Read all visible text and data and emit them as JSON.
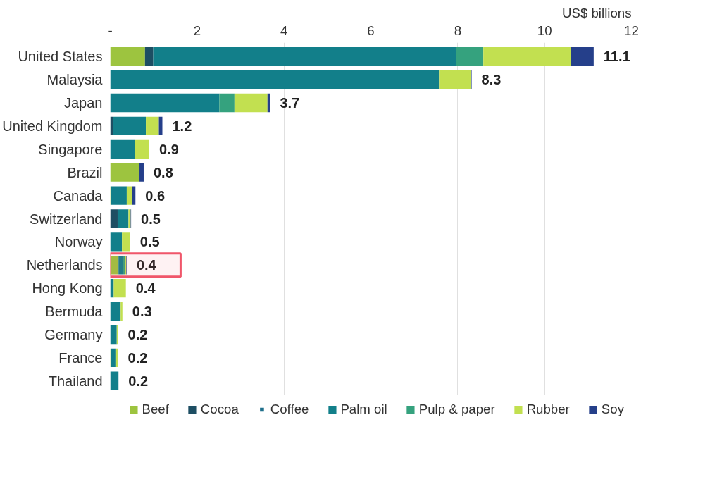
{
  "chart_data": {
    "type": "bar",
    "orientation": "horizontal",
    "stacked": true,
    "xlabel": "US$ billions",
    "categories": [
      "United States",
      "Malaysia",
      "Japan",
      "United Kingdom",
      "Singapore",
      "Brazil",
      "Canada",
      "Switzerland",
      "Norway",
      "Netherlands",
      "Hong Kong",
      "Bermuda",
      "Germany",
      "France",
      "Thailand"
    ],
    "series": [
      {
        "name": "Beef",
        "color": "#9dc43f",
        "values": [
          0.8,
          null,
          null,
          null,
          null,
          0.66,
          0.02,
          null,
          null,
          0.19,
          null,
          null,
          null,
          0.02,
          null
        ]
      },
      {
        "name": "Cocoa",
        "color": "#1d4e63",
        "values": [
          0.19,
          null,
          null,
          0.06,
          null,
          null,
          null,
          0.17,
          null,
          null,
          null,
          null,
          null,
          null,
          null
        ]
      },
      {
        "name": "Coffee",
        "color": "#1f6f8b",
        "values": [
          null,
          null,
          null,
          null,
          null,
          null,
          null,
          null,
          null,
          null,
          null,
          null,
          null,
          null,
          null
        ]
      },
      {
        "name": "Palm oil",
        "color": "#127f8a",
        "values": [
          6.97,
          7.57,
          2.51,
          0.76,
          0.57,
          null,
          0.36,
          0.25,
          0.27,
          0.11,
          0.08,
          0.24,
          0.15,
          0.1,
          0.19
        ]
      },
      {
        "name": "Pulp & paper",
        "color": "#35a27e",
        "values": [
          0.63,
          null,
          0.35,
          null,
          null,
          null,
          null,
          null,
          null,
          0.04,
          null,
          null,
          null,
          null,
          null
        ]
      },
      {
        "name": "Rubber",
        "color": "#c2e050",
        "values": [
          2.02,
          0.73,
          0.76,
          0.3,
          0.32,
          null,
          0.12,
          0.05,
          0.19,
          0.03,
          0.28,
          0.04,
          0.03,
          0.05,
          null
        ]
      },
      {
        "name": "Soy",
        "color": "#253f8a",
        "values": [
          0.52,
          0.02,
          0.06,
          0.08,
          0.01,
          0.11,
          0.08,
          0.01,
          null,
          0.01,
          null,
          null,
          null,
          0.01,
          null
        ]
      }
    ],
    "totals": [
      "11.1",
      "8.3",
      "3.7",
      "1.2",
      "0.9",
      "0.8",
      "0.6",
      "0.5",
      "0.5",
      "0.4",
      "0.4",
      "0.3",
      "0.2",
      "0.2",
      "0.2"
    ],
    "xlim": [
      0,
      12
    ],
    "xticks": [
      {
        "value": 0,
        "label": "-"
      },
      2,
      4,
      6,
      8,
      10,
      12
    ],
    "grid": "x",
    "legend": "bottom",
    "bands": [
      {
        "axis": "y",
        "from": "Netherlands",
        "to": "Netherlands",
        "color": "#f0566a"
      }
    ]
  }
}
